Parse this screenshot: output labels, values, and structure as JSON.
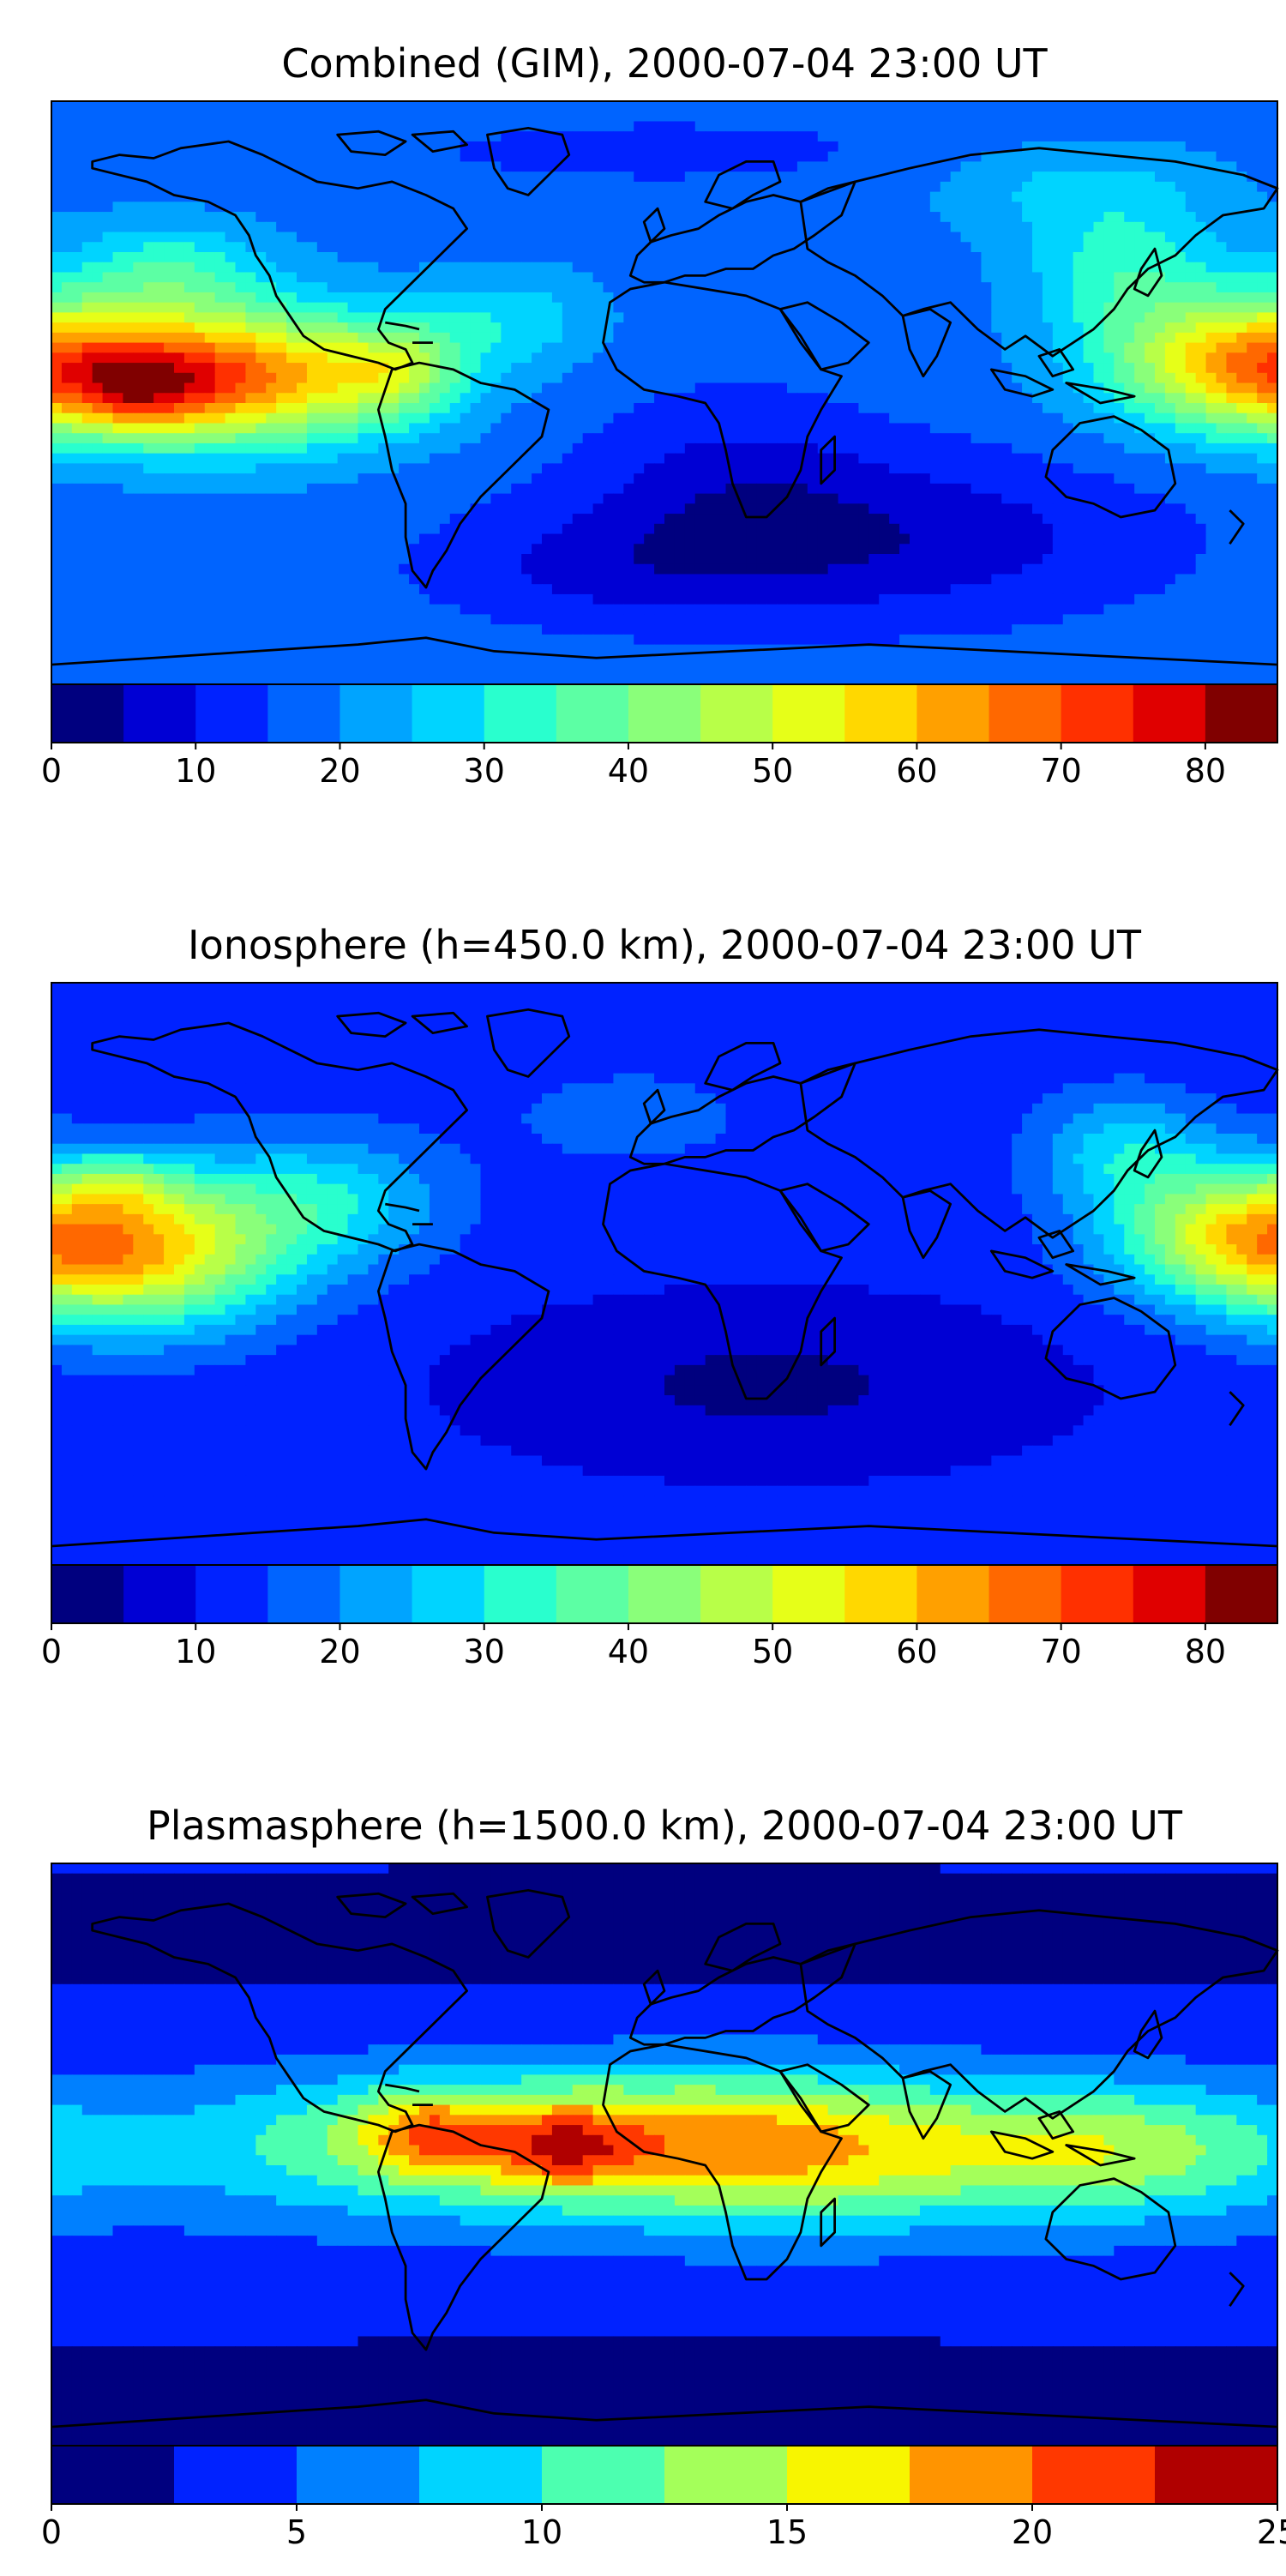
{
  "chart_data": [
    {
      "type": "heatmap",
      "title": "Combined (GIM), 2000-07-04 23:00 UT",
      "colorbar": {
        "ticks": [
          "0",
          "10",
          "20",
          "30",
          "40",
          "50",
          "60",
          "70",
          "80"
        ],
        "min": 0,
        "max": 85,
        "step": 5
      },
      "field": {
        "base": 18,
        "blobs": [
          {
            "lon": -130,
            "lat": 8,
            "amp": 50,
            "slon": 35,
            "slat": 14
          },
          {
            "lon": -155,
            "lat": 3,
            "amp": 15,
            "slon": 14,
            "slat": 8
          },
          {
            "lon": -78,
            "lat": 10,
            "amp": 18,
            "slon": 14,
            "slat": 10
          },
          {
            "lon": -145,
            "lat": 40,
            "amp": 14,
            "slon": 20,
            "slat": 10
          },
          {
            "lon": -45,
            "lat": 25,
            "amp": 10,
            "slon": 18,
            "slat": 10
          },
          {
            "lon": 170,
            "lat": 12,
            "amp": 38,
            "slon": 28,
            "slat": 14
          },
          {
            "lon": 135,
            "lat": 40,
            "amp": 14,
            "slon": 20,
            "slat": 14
          },
          {
            "lon": 120,
            "lat": 65,
            "amp": 8,
            "slon": 30,
            "slat": 10
          },
          {
            "lon": 60,
            "lat": -40,
            "amp": -12,
            "slon": 60,
            "slat": 18
          },
          {
            "lon": 20,
            "lat": -20,
            "amp": -6,
            "slon": 30,
            "slat": 20
          },
          {
            "lon": -20,
            "lat": -50,
            "amp": -6,
            "slon": 40,
            "slat": 12
          },
          {
            "lon": 0,
            "lat": 75,
            "amp": -4,
            "slon": 80,
            "slat": 10
          }
        ]
      }
    },
    {
      "type": "heatmap",
      "title": "Ionosphere  (h=450.0 km), 2000-07-04 23:00 UT",
      "colorbar": {
        "ticks": [
          "0",
          "10",
          "20",
          "30",
          "40",
          "50",
          "60",
          "70",
          "80"
        ],
        "min": 0,
        "max": 85,
        "step": 5
      },
      "field": {
        "base": 12,
        "blobs": [
          {
            "lon": -155,
            "lat": 10,
            "amp": 44,
            "slon": 30,
            "slat": 16
          },
          {
            "lon": -160,
            "lat": 30,
            "amp": 12,
            "slon": 12,
            "slat": 6
          },
          {
            "lon": -100,
            "lat": 25,
            "amp": 16,
            "slon": 25,
            "slat": 14
          },
          {
            "lon": 165,
            "lat": 15,
            "amp": 30,
            "slon": 25,
            "slat": 14
          },
          {
            "lon": 135,
            "lat": 40,
            "amp": 15,
            "slon": 18,
            "slat": 12
          },
          {
            "lon": 30,
            "lat": -30,
            "amp": -8,
            "slon": 60,
            "slat": 18
          },
          {
            "lon": -10,
            "lat": 50,
            "amp": 6,
            "slon": 25,
            "slat": 10
          }
        ]
      }
    },
    {
      "type": "heatmap",
      "title": "Plasmasphere (h=1500.0 km), 2000-07-04 23:00 UT",
      "colorbar": {
        "ticks": [
          "0",
          "5",
          "10",
          "15",
          "20",
          "25"
        ],
        "min": 0,
        "max": 25,
        "step": 2.5
      },
      "field": {
        "base": 3,
        "blobs": [
          {
            "lon": -40,
            "lat": 8,
            "amp": 11,
            "slon": 60,
            "slat": 14
          },
          {
            "lon": -30,
            "lat": 5,
            "amp": 6,
            "slon": 14,
            "slat": 8
          },
          {
            "lon": -70,
            "lat": 10,
            "amp": 6,
            "slon": 12,
            "slat": 8
          },
          {
            "lon": 40,
            "lat": 5,
            "amp": 8,
            "slon": 40,
            "slat": 16
          },
          {
            "lon": 130,
            "lat": 5,
            "amp": 9,
            "slon": 40,
            "slat": 14
          },
          {
            "lon": 0,
            "lat": 0,
            "amp": 3,
            "slon": 200,
            "slat": 20
          },
          {
            "lon": 0,
            "lat": 70,
            "amp": -3,
            "slon": 200,
            "slat": 10
          },
          {
            "lon": 0,
            "lat": -70,
            "amp": -3,
            "slon": 200,
            "slat": 10
          }
        ]
      }
    }
  ],
  "colors": {
    "levels": [
      "#00007f",
      "#0000d4",
      "#0022ff",
      "#0064ff",
      "#00a4ff",
      "#00d4ff",
      "#29ffce",
      "#5cffa4",
      "#8aff7a",
      "#b8ff48",
      "#e6ff18",
      "#ffd800",
      "#ffa000",
      "#ff6800",
      "#ff3000",
      "#e00000",
      "#800000"
    ],
    "plasma_levels": [
      "#00007f",
      "#0022ff",
      "#0080ff",
      "#00d4ff",
      "#4cffb0",
      "#a4ff5a",
      "#f8f500",
      "#ff9400",
      "#ff3800",
      "#b00000"
    ],
    "coastline": "#000000"
  }
}
